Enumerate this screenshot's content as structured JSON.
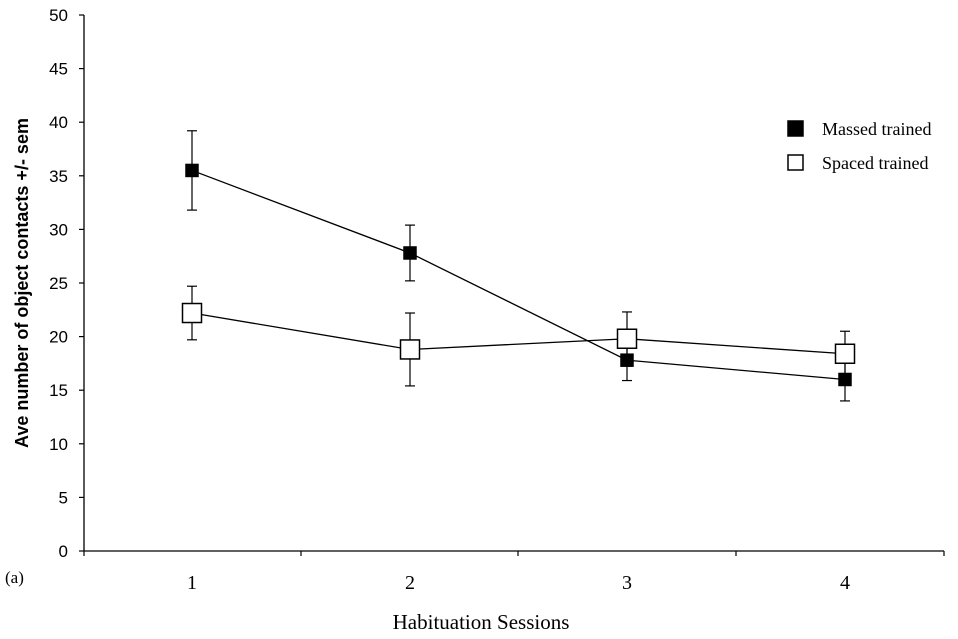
{
  "chart_data": {
    "type": "line",
    "panel_label": "(a)",
    "title": "",
    "xlabel": "Habituation Sessions",
    "ylabel": "Ave number of object contacts +/- sem",
    "x": [
      1,
      2,
      3,
      4
    ],
    "x_tick_labels": [
      "1",
      "2",
      "3",
      "4"
    ],
    "y_ticks": [
      0,
      5,
      10,
      15,
      20,
      25,
      30,
      35,
      40,
      45,
      50
    ],
    "ylim": [
      0,
      50
    ],
    "grid": false,
    "legend_position": "top-right",
    "series": [
      {
        "name": "Massed trained",
        "marker": "filled-square",
        "color": "#000000",
        "values": [
          35.5,
          27.8,
          17.8,
          16.0
        ],
        "error": [
          3.7,
          2.6,
          1.9,
          2.0
        ]
      },
      {
        "name": "Spaced trained",
        "marker": "open-square",
        "color": "#000000",
        "values": [
          22.2,
          18.8,
          19.8,
          18.4
        ],
        "error": [
          2.5,
          3.4,
          2.5,
          2.1
        ]
      }
    ]
  }
}
